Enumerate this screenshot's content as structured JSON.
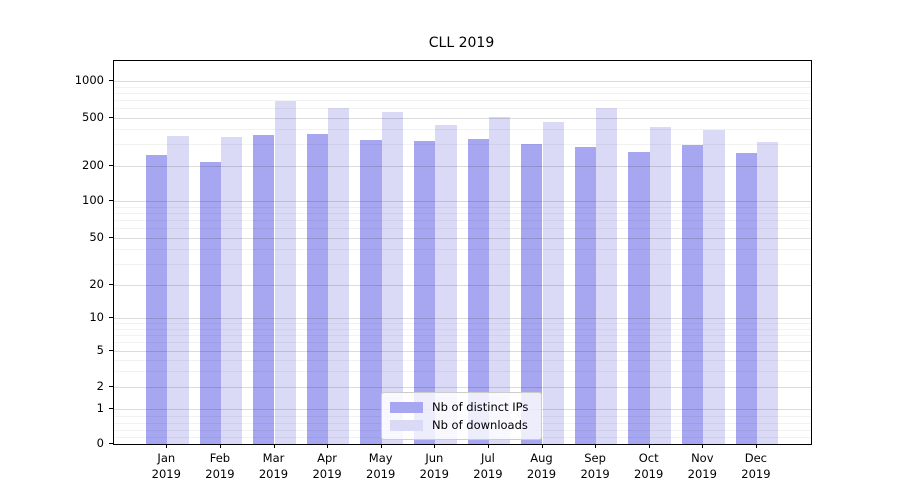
{
  "title": "CLL 2019",
  "chart_data": {
    "type": "bar",
    "title": "CLL 2019",
    "categories": [
      "Jan 2019",
      "Feb 2019",
      "Mar 2019",
      "Apr 2019",
      "May 2019",
      "Jun 2019",
      "Jul 2019",
      "Aug 2019",
      "Sep 2019",
      "Oct 2019",
      "Nov 2019",
      "Dec 2019"
    ],
    "month_labels": [
      "Jan",
      "Feb",
      "Mar",
      "Apr",
      "May",
      "Jun",
      "Jul",
      "Aug",
      "Sep",
      "Oct",
      "Nov",
      "Dec"
    ],
    "year_label": "2019",
    "series": [
      {
        "name": "Nb of distinct IPs",
        "color": "#a6a6f1",
        "values": [
          245,
          213,
          355,
          365,
          327,
          322,
          330,
          303,
          287,
          258,
          297,
          256
        ]
      },
      {
        "name": "Nb of downloads",
        "color": "#dadaf7",
        "values": [
          350,
          348,
          680,
          600,
          555,
          435,
          505,
          455,
          595,
          420,
          396,
          315
        ]
      }
    ],
    "yscale": "symlog",
    "y_ticks": [
      0,
      1,
      2,
      5,
      10,
      20,
      50,
      100,
      200,
      500,
      1000
    ],
    "y_minor_ticks": [
      0.2,
      0.4,
      0.6,
      0.8,
      3,
      4,
      6,
      7,
      8,
      9,
      30,
      40,
      60,
      70,
      80,
      90,
      300,
      400,
      600,
      700,
      800,
      900
    ],
    "ylim": [
      0,
      1000
    ],
    "grid": true,
    "legend_position": "lower center"
  }
}
